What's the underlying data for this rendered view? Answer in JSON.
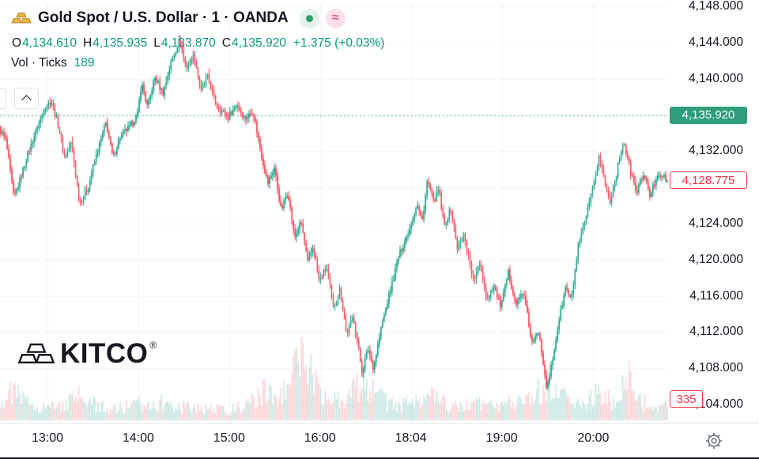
{
  "header": {
    "symbol_title": "Gold Spot / U.S. Dollar · 1 · OANDA",
    "wave_glyph": "≈",
    "ohlc": {
      "o_label": "O",
      "o": "4,134.610",
      "h_label": "H",
      "h": "4,135.935",
      "l_label": "L",
      "l": "4,133.870",
      "c_label": "C",
      "c": "4,135.920",
      "change": "+1.375 (+0.03%)"
    },
    "vol_label": "Vol · Ticks",
    "vol_value": "189"
  },
  "watermark": {
    "text": "KITCO",
    "registered": "®"
  },
  "axis": {
    "close_badge": {
      "text": "4,135.920",
      "value": 4135.92
    },
    "last_badge": {
      "text": "4,128.775",
      "value": 4128.775
    },
    "count_badge": {
      "text": "335"
    },
    "price_labels": [
      {
        "text": "4,148.000",
        "value": 4148
      },
      {
        "text": "4,144.000",
        "value": 4144
      },
      {
        "text": "4,140.000",
        "value": 4140
      },
      {
        "text": "4,132.000",
        "value": 4132
      },
      {
        "text": "4,124.000",
        "value": 4124
      },
      {
        "text": "4,120.000",
        "value": 4120
      },
      {
        "text": "4,116.000",
        "value": 4116
      },
      {
        "text": "4,112.000",
        "value": 4112
      },
      {
        "text": "4,108.000",
        "value": 4108
      },
      {
        "text": "4,104.000",
        "value": 4104
      }
    ]
  },
  "colors": {
    "up": "#089981",
    "down": "#f23645",
    "prev_close": "#2f9c7c",
    "badge_close_bg": "#2f9c7c",
    "grid": "#f4f5f8",
    "text": "#131722",
    "muted": "#6b7280",
    "gold": "#e0aa3e"
  },
  "chart_data": {
    "type": "candlestick",
    "title": "Gold Spot / U.S. Dollar · 1 · OANDA",
    "provider": "OANDA",
    "interval": "1",
    "session_ohlc": {
      "open": 4134.61,
      "high": 4135.935,
      "low": 4133.87,
      "close": 4135.92,
      "change": 1.375,
      "change_pct": 0.03
    },
    "volume_ticks": 189,
    "prev_close_line": 4135.92,
    "last_price": 4128.775,
    "count_axis_value": 335,
    "y_range": [
      4102.0,
      4148.7
    ],
    "price_ticks": [
      4148,
      4144,
      4140,
      4136,
      4132,
      4128,
      4124,
      4120,
      4116,
      4112,
      4108,
      4104
    ],
    "time_ticks": [
      {
        "label": "13:00",
        "pos": 0.071
      },
      {
        "label": "14:00",
        "pos": 0.207
      },
      {
        "label": "15:00",
        "pos": 0.343
      },
      {
        "label": "16:00",
        "pos": 0.479
      },
      {
        "label": "18:04",
        "pos": 0.615
      },
      {
        "label": "19:00",
        "pos": 0.751
      },
      {
        "label": "20:00",
        "pos": 0.888
      }
    ],
    "price_path": [
      [
        0.0,
        4134.5
      ],
      [
        0.01,
        4133.2
      ],
      [
        0.022,
        4126.8
      ],
      [
        0.032,
        4129.0
      ],
      [
        0.042,
        4131.5
      ],
      [
        0.055,
        4134.2
      ],
      [
        0.068,
        4136.8
      ],
      [
        0.078,
        4137.6
      ],
      [
        0.088,
        4135.0
      ],
      [
        0.098,
        4131.3
      ],
      [
        0.108,
        4133.0
      ],
      [
        0.12,
        4126.3
      ],
      [
        0.132,
        4127.8
      ],
      [
        0.145,
        4131.5
      ],
      [
        0.16,
        4135.2
      ],
      [
        0.17,
        4131.2
      ],
      [
        0.182,
        4133.8
      ],
      [
        0.195,
        4134.6
      ],
      [
        0.207,
        4136.0
      ],
      [
        0.213,
        4139.6
      ],
      [
        0.222,
        4136.8
      ],
      [
        0.233,
        4140.2
      ],
      [
        0.245,
        4138.4
      ],
      [
        0.258,
        4142.0
      ],
      [
        0.27,
        4144.3
      ],
      [
        0.28,
        4141.2
      ],
      [
        0.292,
        4142.6
      ],
      [
        0.302,
        4138.6
      ],
      [
        0.312,
        4140.2
      ],
      [
        0.325,
        4137.0
      ],
      [
        0.343,
        4135.8
      ],
      [
        0.355,
        4137.2
      ],
      [
        0.368,
        4135.6
      ],
      [
        0.38,
        4136.4
      ],
      [
        0.392,
        4131.8
      ],
      [
        0.402,
        4128.4
      ],
      [
        0.412,
        4130.2
      ],
      [
        0.422,
        4125.4
      ],
      [
        0.432,
        4127.6
      ],
      [
        0.442,
        4122.4
      ],
      [
        0.452,
        4124.2
      ],
      [
        0.462,
        4119.6
      ],
      [
        0.47,
        4121.6
      ],
      [
        0.479,
        4117.6
      ],
      [
        0.49,
        4119.2
      ],
      [
        0.5,
        4114.6
      ],
      [
        0.51,
        4116.8
      ],
      [
        0.52,
        4111.8
      ],
      [
        0.53,
        4113.8
      ],
      [
        0.543,
        4107.6
      ],
      [
        0.552,
        4110.2
      ],
      [
        0.56,
        4108.0
      ],
      [
        0.572,
        4112.6
      ],
      [
        0.584,
        4116.2
      ],
      [
        0.598,
        4120.4
      ],
      [
        0.615,
        4123.6
      ],
      [
        0.625,
        4126.2
      ],
      [
        0.633,
        4124.2
      ],
      [
        0.641,
        4128.8
      ],
      [
        0.65,
        4126.4
      ],
      [
        0.658,
        4127.8
      ],
      [
        0.666,
        4123.6
      ],
      [
        0.676,
        4125.6
      ],
      [
        0.686,
        4121.2
      ],
      [
        0.696,
        4122.8
      ],
      [
        0.71,
        4117.6
      ],
      [
        0.72,
        4119.6
      ],
      [
        0.73,
        4115.6
      ],
      [
        0.74,
        4117.2
      ],
      [
        0.751,
        4114.8
      ],
      [
        0.762,
        4118.6
      ],
      [
        0.774,
        4115.0
      ],
      [
        0.784,
        4116.6
      ],
      [
        0.798,
        4110.6
      ],
      [
        0.808,
        4112.2
      ],
      [
        0.82,
        4105.6
      ],
      [
        0.828,
        4108.8
      ],
      [
        0.838,
        4113.4
      ],
      [
        0.848,
        4117.0
      ],
      [
        0.856,
        4115.4
      ],
      [
        0.866,
        4121.0
      ],
      [
        0.878,
        4124.6
      ],
      [
        0.888,
        4127.6
      ],
      [
        0.898,
        4131.6
      ],
      [
        0.906,
        4128.6
      ],
      [
        0.914,
        4126.4
      ],
      [
        0.924,
        4129.6
      ],
      [
        0.934,
        4133.2
      ],
      [
        0.944,
        4130.0
      ],
      [
        0.954,
        4127.4
      ],
      [
        0.964,
        4129.6
      ],
      [
        0.974,
        4127.0
      ],
      [
        0.986,
        4129.6
      ],
      [
        1.0,
        4128.775
      ]
    ],
    "volume_path": [
      [
        0.0,
        26
      ],
      [
        0.02,
        40
      ],
      [
        0.04,
        24
      ],
      [
        0.07,
        18
      ],
      [
        0.1,
        22
      ],
      [
        0.12,
        32
      ],
      [
        0.15,
        18
      ],
      [
        0.18,
        16
      ],
      [
        0.2,
        20
      ],
      [
        0.23,
        26
      ],
      [
        0.26,
        20
      ],
      [
        0.3,
        16
      ],
      [
        0.34,
        14
      ],
      [
        0.37,
        20
      ],
      [
        0.4,
        42
      ],
      [
        0.42,
        30
      ],
      [
        0.44,
        62
      ],
      [
        0.455,
        100
      ],
      [
        0.468,
        58
      ],
      [
        0.48,
        40
      ],
      [
        0.5,
        30
      ],
      [
        0.52,
        28
      ],
      [
        0.545,
        58
      ],
      [
        0.56,
        38
      ],
      [
        0.58,
        24
      ],
      [
        0.6,
        20
      ],
      [
        0.615,
        26
      ],
      [
        0.64,
        36
      ],
      [
        0.66,
        24
      ],
      [
        0.68,
        18
      ],
      [
        0.7,
        26
      ],
      [
        0.73,
        20
      ],
      [
        0.75,
        28
      ],
      [
        0.77,
        20
      ],
      [
        0.8,
        32
      ],
      [
        0.82,
        55
      ],
      [
        0.84,
        36
      ],
      [
        0.86,
        24
      ],
      [
        0.88,
        30
      ],
      [
        0.9,
        36
      ],
      [
        0.92,
        24
      ],
      [
        0.94,
        62
      ],
      [
        0.96,
        26
      ],
      [
        0.98,
        20
      ],
      [
        1.0,
        22
      ]
    ]
  }
}
